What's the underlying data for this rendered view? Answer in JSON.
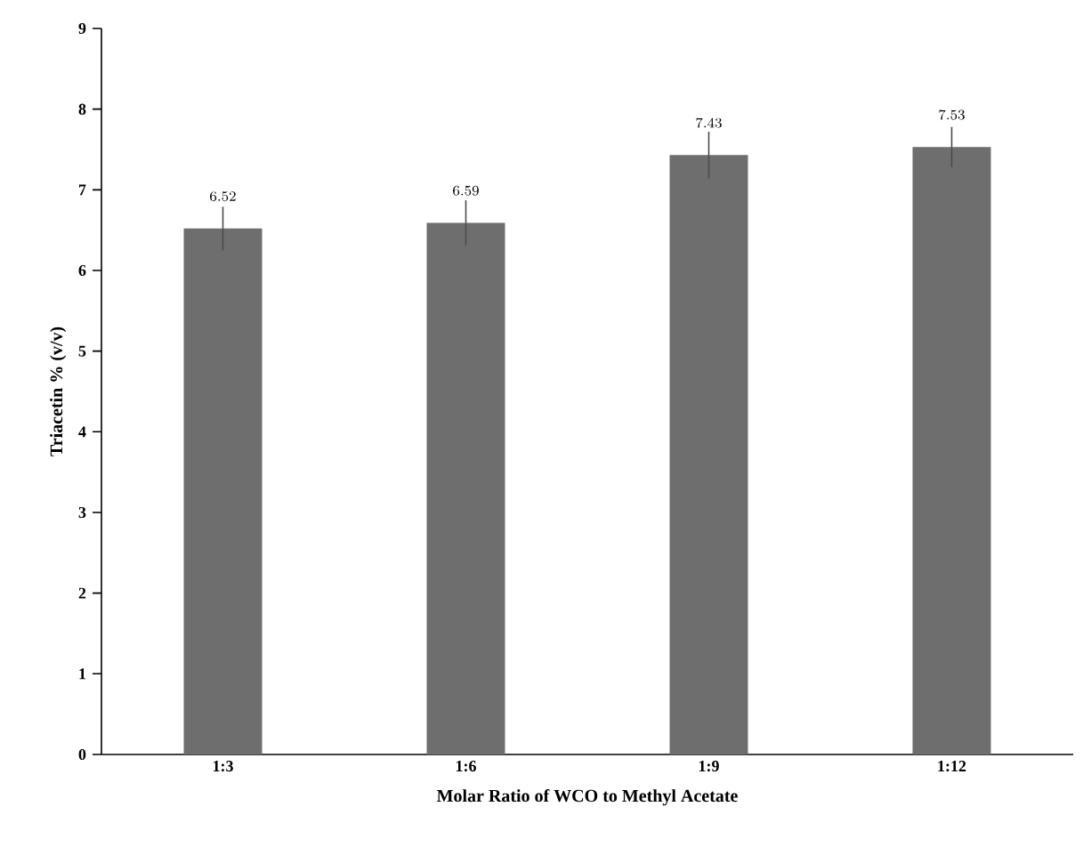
{
  "chart_data": {
    "type": "bar",
    "xlabel": "Molar Ratio of WCO to Methyl Acetate",
    "ylabel": "Triacetin % (v/v)",
    "categories": [
      "1:3",
      "1:6",
      "1:9",
      "1:12"
    ],
    "values": [
      6.52,
      6.59,
      7.43,
      7.53
    ],
    "errors": [
      0.27,
      0.28,
      0.29,
      0.25
    ],
    "color": "#6e6e6e",
    "data_labels": true,
    "ylim": [
      0,
      9
    ],
    "yticks": [
      0,
      1,
      2,
      3,
      4,
      5,
      6,
      7,
      8,
      9
    ]
  }
}
